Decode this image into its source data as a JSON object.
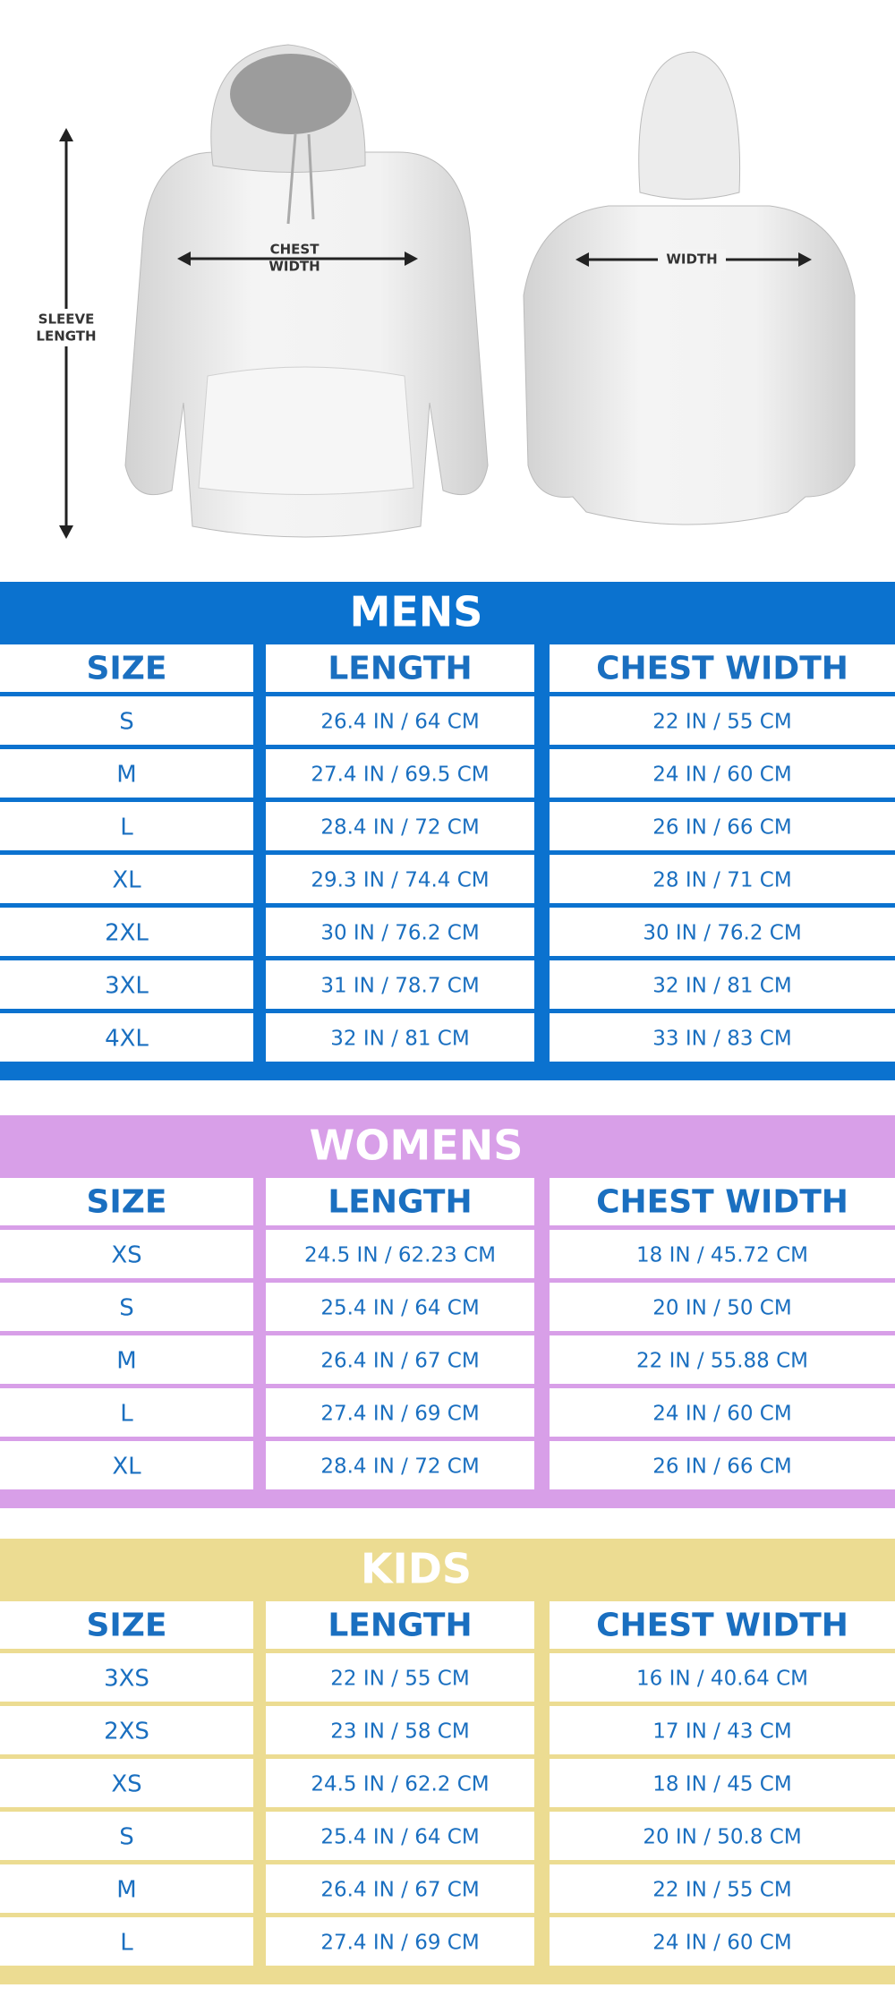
{
  "diagram": {
    "sleeve_label": [
      "SLEEVE",
      "LENGTH"
    ],
    "chest_label": [
      "CHEST",
      "WIDTH"
    ],
    "back_label": "WIDTH"
  },
  "tables": [
    {
      "title": "MENS",
      "color": "#0b72cf",
      "headers": [
        "SIZE",
        "LENGTH",
        "CHEST WIDTH"
      ],
      "rows": [
        [
          "S",
          "26.4 IN / 64 CM",
          "22 IN / 55 CM"
        ],
        [
          "M",
          "27.4 IN / 69.5 CM",
          "24 IN / 60 CM"
        ],
        [
          "L",
          "28.4 IN / 72 CM",
          "26 IN / 66 CM"
        ],
        [
          "XL",
          "29.3 IN / 74.4 CM",
          "28 IN / 71 CM"
        ],
        [
          "2XL",
          "30 IN / 76.2 CM",
          "30 IN / 76.2 CM"
        ],
        [
          "3XL",
          "31 IN / 78.7 CM",
          "32 IN / 81 CM"
        ],
        [
          "4XL",
          "32 IN / 81 CM",
          "33 IN / 83 CM"
        ]
      ]
    },
    {
      "title": "WOMENS",
      "color": "#d89fe8",
      "headers": [
        "SIZE",
        "LENGTH",
        "CHEST WIDTH"
      ],
      "rows": [
        [
          "XS",
          "24.5 IN / 62.23 CM",
          "18 IN / 45.72 CM"
        ],
        [
          "S",
          "25.4 IN / 64 CM",
          "20 IN / 50 CM"
        ],
        [
          "M",
          "26.4 IN / 67 CM",
          "22 IN /  55.88 CM"
        ],
        [
          "L",
          "27.4 IN / 69 CM",
          "24 IN / 60 CM"
        ],
        [
          "XL",
          "28.4 IN / 72 CM",
          "26 IN / 66 CM"
        ]
      ]
    },
    {
      "title": "KIDS",
      "color": "#ecdc92",
      "headers": [
        "SIZE",
        "LENGTH",
        "CHEST WIDTH"
      ],
      "rows": [
        [
          "3XS",
          "22 IN / 55 CM",
          "16 IN / 40.64 CM"
        ],
        [
          "2XS",
          "23 IN / 58 CM",
          "17 IN / 43 CM"
        ],
        [
          "XS",
          "24.5 IN / 62.2 CM",
          "18 IN / 45 CM"
        ],
        [
          "S",
          "25.4 IN / 64 CM",
          "20 IN / 50.8 CM"
        ],
        [
          "M",
          "26.4 IN / 67 CM",
          "22 IN / 55 CM"
        ],
        [
          "L",
          "27.4 IN / 69 CM",
          "24 IN / 60 CM"
        ]
      ]
    }
  ]
}
